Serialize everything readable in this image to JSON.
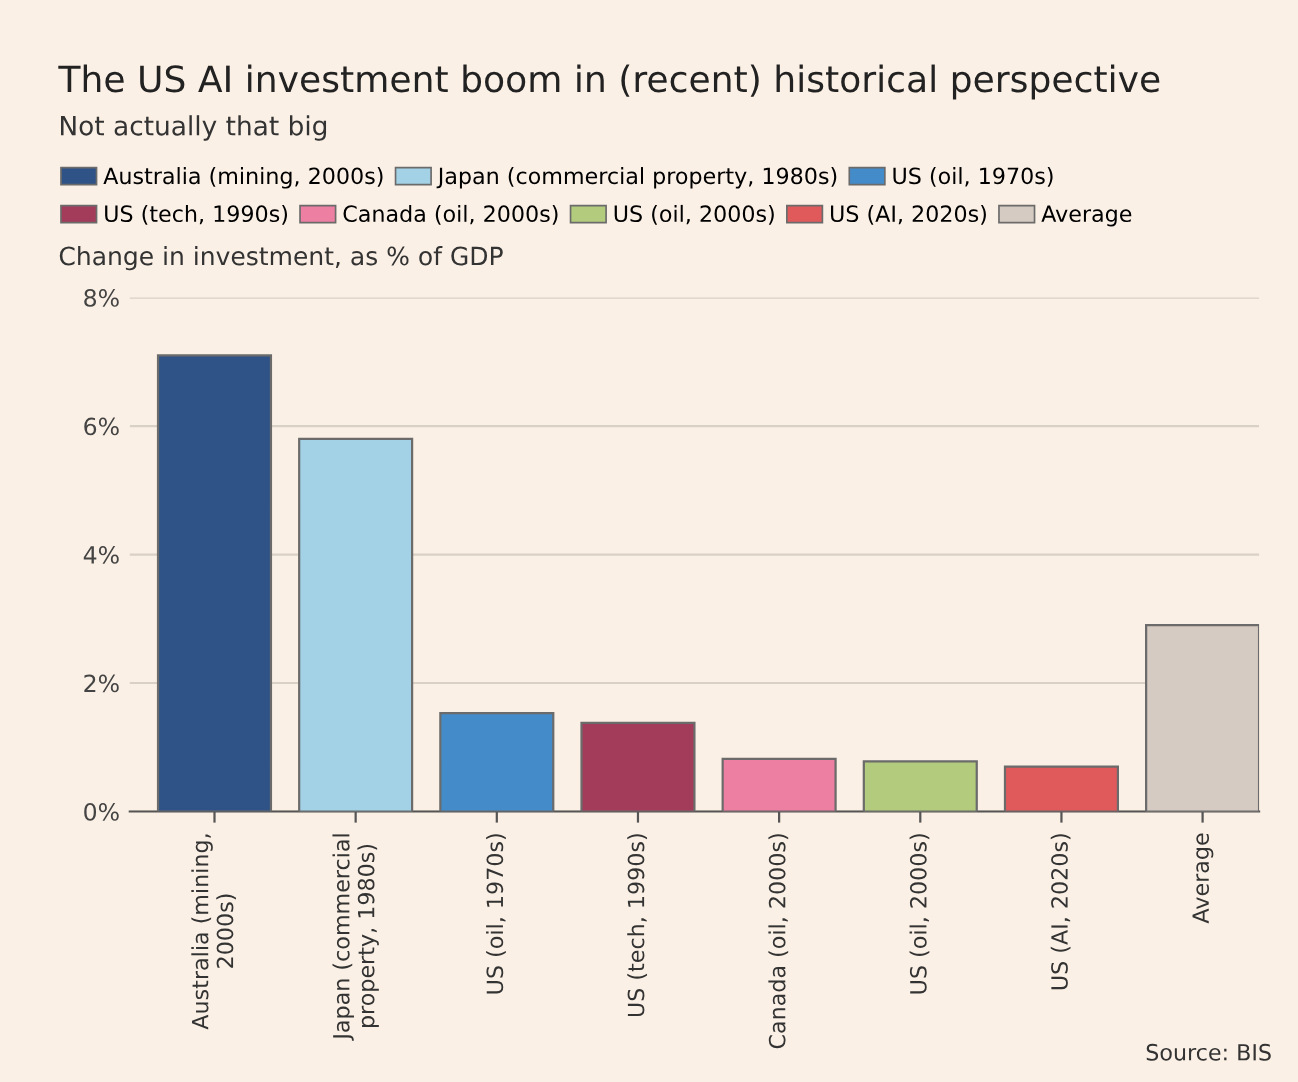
{
  "chart_data": {
    "type": "bar",
    "title": "The US AI investment boom in (recent) historical perspective",
    "subtitle": "Not actually that big",
    "ylabel": "Change in investment, as % of GDP",
    "categories": [
      "Australia (mining,\n2000s)",
      "Japan (commercial\nproperty, 1980s)",
      "US (oil, 1970s)",
      "US (tech, 1990s)",
      "Canada (oil, 2000s)",
      "US (oil, 2000s)",
      "US (AI, 2020s)",
      "Average"
    ],
    "series": [
      {
        "name": "Australia (mining, 2000s)",
        "color": "#2f5386",
        "values": [
          7.1,
          null,
          null,
          null,
          null,
          null,
          null,
          null
        ]
      },
      {
        "name": "Japan (commercial property, 1980s)",
        "color": "#a3d2e6",
        "values": [
          null,
          5.8,
          null,
          null,
          null,
          null,
          null,
          null
        ]
      },
      {
        "name": "US (oil, 1970s)",
        "color": "#448cc9",
        "values": [
          null,
          null,
          1.53,
          null,
          null,
          null,
          null,
          null
        ]
      },
      {
        "name": "US (tech, 1990s)",
        "color": "#a23c5a",
        "values": [
          null,
          null,
          null,
          1.38,
          null,
          null,
          null,
          null
        ]
      },
      {
        "name": "Canada (oil, 2000s)",
        "color": "#ec7fa2",
        "values": [
          null,
          null,
          null,
          null,
          0.82,
          null,
          null,
          null
        ]
      },
      {
        "name": "US (oil, 2000s)",
        "color": "#b3cb7d",
        "values": [
          null,
          null,
          null,
          null,
          null,
          0.78,
          null,
          null
        ]
      },
      {
        "name": "US (AI, 2020s)",
        "color": "#e05a5c",
        "values": [
          null,
          null,
          null,
          null,
          null,
          null,
          0.7,
          null
        ]
      },
      {
        "name": "Average",
        "color": "#d6cbc2",
        "values": [
          null,
          null,
          null,
          null,
          null,
          null,
          null,
          2.9
        ]
      }
    ],
    "ylim": [
      0,
      8
    ],
    "yticks": [
      {
        "value": 0,
        "label": "0%"
      },
      {
        "value": 2,
        "label": "2%"
      },
      {
        "value": 4,
        "label": "4%"
      },
      {
        "value": 6,
        "label": "6%"
      },
      {
        "value": 8,
        "label": "8%"
      }
    ],
    "grid": "y",
    "legend": "top",
    "annotations": [
      "Source: BIS"
    ]
  }
}
